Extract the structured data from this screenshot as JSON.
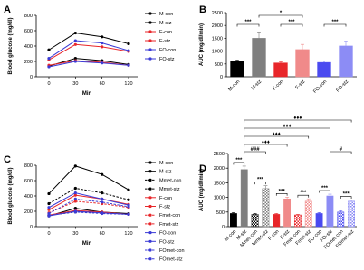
{
  "chart_data": [
    {
      "type": "line",
      "panel_label": "A",
      "y_label": "Blood glucose (mg/dl)",
      "x_label": "Min",
      "categories": [
        "0",
        "30",
        "60",
        "120"
      ],
      "ylim": [
        0,
        800
      ],
      "yticks": [
        0,
        200,
        400,
        600,
        800
      ],
      "series": [
        {
          "name": "M-con",
          "color": "#000000",
          "values": [
            140,
            240,
            210,
            160
          ]
        },
        {
          "name": "M-stz",
          "color": "#000000",
          "values": [
            350,
            570,
            520,
            430
          ]
        },
        {
          "name": "F-con",
          "color": "#e8262a",
          "values": [
            150,
            210,
            190,
            150
          ]
        },
        {
          "name": "F-stz",
          "color": "#e8262a",
          "values": [
            220,
            420,
            390,
            330
          ]
        },
        {
          "name": "FO-con",
          "color": "#3b3bd6",
          "values": [
            130,
            200,
            180,
            150
          ]
        },
        {
          "name": "FO-stz",
          "color": "#3b3bd6",
          "values": [
            240,
            470,
            440,
            340
          ]
        }
      ]
    },
    {
      "type": "bar",
      "panel_label": "B",
      "y_label": "AUC (mg/dl/min)",
      "categories": [
        "M-con",
        "M-stz",
        "F-con",
        "F-stz",
        "FO-con",
        "FO-stz"
      ],
      "values": [
        600,
        1500,
        540,
        1060,
        560,
        1200
      ],
      "errors": [
        60,
        250,
        50,
        200,
        50,
        200
      ],
      "colors": [
        "#000000",
        "#7f7f7f",
        "#e8262a",
        "#f08a8a",
        "#4a4af0",
        "#8c8cf5"
      ],
      "ylim": [
        0,
        2500
      ],
      "yticks": [
        0,
        500,
        1000,
        1500,
        2000,
        2500
      ],
      "annotations": [
        "***",
        "*",
        "***",
        "***"
      ]
    },
    {
      "type": "line",
      "panel_label": "C",
      "y_label": "Blood glucose (mg/dl)",
      "x_label": "Min",
      "categories": [
        "0",
        "30",
        "60",
        "120"
      ],
      "ylim": [
        0,
        800
      ],
      "yticks": [
        0,
        200,
        400,
        600,
        800
      ],
      "series": [
        {
          "name": "M-con",
          "color": "#000000",
          "dashed": false,
          "values": [
            140,
            240,
            190,
            170
          ]
        },
        {
          "name": "M-stz",
          "color": "#000000",
          "dashed": false,
          "values": [
            430,
            790,
            680,
            480
          ]
        },
        {
          "name": "Mmet-con",
          "color": "#000000",
          "dashed": true,
          "values": [
            150,
            190,
            180,
            160
          ]
        },
        {
          "name": "Mmet-stz",
          "color": "#000000",
          "dashed": true,
          "values": [
            300,
            500,
            440,
            350
          ]
        },
        {
          "name": "F-con",
          "color": "#e8262a",
          "dashed": false,
          "values": [
            150,
            210,
            190,
            160
          ]
        },
        {
          "name": "F-stz",
          "color": "#e8262a",
          "dashed": false,
          "values": [
            220,
            410,
            360,
            290
          ]
        },
        {
          "name": "Fmet-con",
          "color": "#e8262a",
          "dashed": true,
          "values": [
            150,
            200,
            180,
            160
          ]
        },
        {
          "name": "Fmet-stz",
          "color": "#e8262a",
          "dashed": true,
          "values": [
            180,
            330,
            300,
            250
          ]
        },
        {
          "name": "FO-con",
          "color": "#3b3bd6",
          "dashed": false,
          "values": [
            140,
            200,
            180,
            160
          ]
        },
        {
          "name": "FO-stz",
          "color": "#3b3bd6",
          "dashed": false,
          "values": [
            250,
            440,
            360,
            280
          ]
        },
        {
          "name": "FOmet-con",
          "color": "#3b3bd6",
          "dashed": true,
          "values": [
            150,
            190,
            170,
            160
          ]
        },
        {
          "name": "FOmet-stz",
          "color": "#3b3bd6",
          "dashed": true,
          "values": [
            170,
            360,
            320,
            260
          ]
        }
      ]
    },
    {
      "type": "bar",
      "panel_label": "D",
      "y_label": "AUC (mg/dl/min)",
      "categories": [
        "M-con",
        "M-stz",
        "Mmet-con",
        "Mmet-stz",
        "F-con",
        "F-stz",
        "Fmet-con",
        "Fmet-stz",
        "FO-con",
        "FO-stz",
        "FOmet-con",
        "FOmet-stz"
      ],
      "values": [
        450,
        1950,
        420,
        1300,
        420,
        950,
        400,
        870,
        450,
        1050,
        500,
        870
      ],
      "errors": [
        30,
        120,
        30,
        100,
        30,
        60,
        20,
        80,
        30,
        60,
        40,
        40
      ],
      "colors": [
        "#000000",
        "#7f7f7f",
        "#000000",
        "#7f7f7f",
        "#e8262a",
        "#f08a8a",
        "#e8262a",
        "#f08a8a",
        "#4a4af0",
        "#8c8cf5",
        "#4a4af0",
        "#8c8cf5"
      ],
      "patterned": [
        false,
        false,
        true,
        true,
        false,
        false,
        true,
        true,
        false,
        false,
        true,
        true
      ],
      "ylim": [
        0,
        2500
      ],
      "yticks": [
        0,
        500,
        1000,
        1500,
        2000,
        2500
      ],
      "annotations": [
        "♦♦♦",
        "♦♦♦",
        "♦♦♦",
        "♦♦♦",
        "###",
        "#",
        "***",
        "***",
        "***",
        "***",
        "***",
        "***"
      ]
    }
  ]
}
